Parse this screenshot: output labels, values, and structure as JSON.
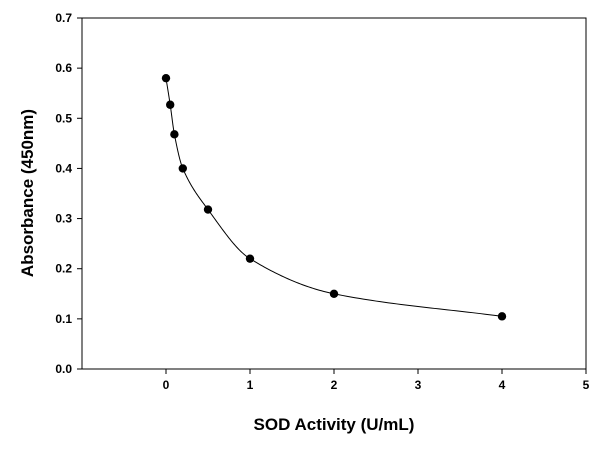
{
  "chart_data": {
    "type": "scatter",
    "title": "",
    "xlabel": "SOD Activity (U/mL)",
    "ylabel": "Absorbance (450nm)",
    "xlim": [
      -1,
      5
    ],
    "ylim": [
      0,
      0.7
    ],
    "x_ticks": [
      0,
      1,
      2,
      3,
      4,
      5
    ],
    "y_ticks": [
      "0.0",
      "0.1",
      "0.2",
      "0.3",
      "0.4",
      "0.5",
      "0.6",
      "0.7"
    ],
    "grid": false,
    "legend": "none",
    "series": [
      {
        "x": [
          0,
          0.05,
          0.1,
          0.2,
          0.5,
          1,
          2,
          4
        ],
        "y": [
          0.58,
          0.527,
          0.468,
          0.4,
          0.318,
          0.22,
          0.15,
          0.105
        ],
        "marker": "filled-circle",
        "color": "#000000"
      }
    ],
    "fit_curve": true
  }
}
